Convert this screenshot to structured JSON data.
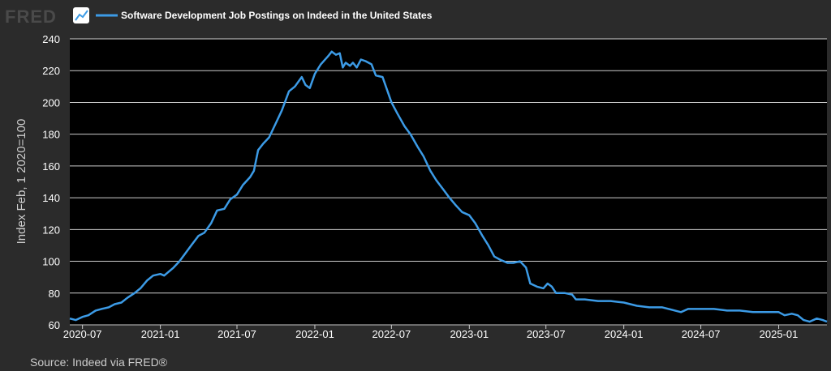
{
  "branding": {
    "logo_text": "FRED",
    "logo_icon": "line-graph-icon"
  },
  "colors": {
    "background": "#2b2b2b",
    "plot_area": "#000000",
    "grid": "#cccccc",
    "series": "#3c9be6",
    "text": "#ffffff",
    "muted_text": "#cccccc"
  },
  "source": "Source: Indeed via FRED®",
  "chart_data": {
    "type": "line",
    "title": "",
    "xlabel": "",
    "ylabel": "Index Feb, 1 2020=100",
    "ylim": [
      60,
      240
    ],
    "yticks": [
      60,
      80,
      100,
      120,
      140,
      160,
      180,
      200,
      220,
      240
    ],
    "xlim": [
      "2020-06-01",
      "2025-04-25"
    ],
    "xticks": [
      "2020-07",
      "2021-01",
      "2021-07",
      "2022-01",
      "2022-07",
      "2023-01",
      "2023-07",
      "2024-01",
      "2024-07",
      "2025-01"
    ],
    "grid": true,
    "legend": "top-left",
    "series": [
      {
        "name": "Software Development Job Postings on Indeed in the United States",
        "color": "#3c9be6",
        "points": [
          [
            "2020-06-01",
            64
          ],
          [
            "2020-06-15",
            63
          ],
          [
            "2020-07-01",
            65
          ],
          [
            "2020-07-15",
            66
          ],
          [
            "2020-08-01",
            69
          ],
          [
            "2020-08-15",
            70
          ],
          [
            "2020-09-01",
            71
          ],
          [
            "2020-09-15",
            73
          ],
          [
            "2020-10-01",
            74
          ],
          [
            "2020-10-15",
            77
          ],
          [
            "2020-11-01",
            80
          ],
          [
            "2020-11-15",
            83
          ],
          [
            "2020-12-01",
            88
          ],
          [
            "2020-12-15",
            91
          ],
          [
            "2021-01-01",
            92
          ],
          [
            "2021-01-10",
            91
          ],
          [
            "2021-02-01",
            96
          ],
          [
            "2021-02-15",
            100
          ],
          [
            "2021-03-01",
            105
          ],
          [
            "2021-03-15",
            110
          ],
          [
            "2021-04-01",
            116
          ],
          [
            "2021-04-15",
            118
          ],
          [
            "2021-05-01",
            124
          ],
          [
            "2021-05-15",
            132
          ],
          [
            "2021-06-01",
            133
          ],
          [
            "2021-06-15",
            139
          ],
          [
            "2021-07-01",
            142
          ],
          [
            "2021-07-15",
            148
          ],
          [
            "2021-08-01",
            153
          ],
          [
            "2021-08-10",
            157
          ],
          [
            "2021-08-20",
            170
          ],
          [
            "2021-09-01",
            174
          ],
          [
            "2021-09-15",
            178
          ],
          [
            "2021-10-01",
            187
          ],
          [
            "2021-10-15",
            195
          ],
          [
            "2021-11-01",
            207
          ],
          [
            "2021-11-15",
            210
          ],
          [
            "2021-12-01",
            216
          ],
          [
            "2021-12-10",
            211
          ],
          [
            "2021-12-20",
            209
          ],
          [
            "2022-01-01",
            218
          ],
          [
            "2022-01-15",
            224
          ],
          [
            "2022-02-01",
            229
          ],
          [
            "2022-02-10",
            232
          ],
          [
            "2022-02-20",
            230
          ],
          [
            "2022-03-01",
            231
          ],
          [
            "2022-03-08",
            222
          ],
          [
            "2022-03-15",
            225
          ],
          [
            "2022-03-25",
            223
          ],
          [
            "2022-04-01",
            225
          ],
          [
            "2022-04-10",
            222
          ],
          [
            "2022-04-20",
            227
          ],
          [
            "2022-05-01",
            226
          ],
          [
            "2022-05-15",
            224
          ],
          [
            "2022-05-25",
            217
          ],
          [
            "2022-06-10",
            216
          ],
          [
            "2022-07-01",
            200
          ],
          [
            "2022-07-15",
            193
          ],
          [
            "2022-08-01",
            185
          ],
          [
            "2022-08-15",
            180
          ],
          [
            "2022-09-01",
            172
          ],
          [
            "2022-09-15",
            166
          ],
          [
            "2022-10-01",
            157
          ],
          [
            "2022-10-15",
            151
          ],
          [
            "2022-11-01",
            145
          ],
          [
            "2022-11-15",
            140
          ],
          [
            "2022-12-01",
            135
          ],
          [
            "2022-12-15",
            131
          ],
          [
            "2023-01-01",
            129
          ],
          [
            "2023-01-15",
            124
          ],
          [
            "2023-02-01",
            116
          ],
          [
            "2023-02-15",
            110
          ],
          [
            "2023-03-01",
            103
          ],
          [
            "2023-03-15",
            101
          ],
          [
            "2023-04-01",
            99
          ],
          [
            "2023-04-15",
            99
          ],
          [
            "2023-05-01",
            100
          ],
          [
            "2023-05-15",
            96
          ],
          [
            "2023-05-25",
            86
          ],
          [
            "2023-06-10",
            84
          ],
          [
            "2023-06-25",
            83
          ],
          [
            "2023-07-05",
            86
          ],
          [
            "2023-07-15",
            84
          ],
          [
            "2023-07-25",
            80
          ],
          [
            "2023-08-15",
            80
          ],
          [
            "2023-09-01",
            79
          ],
          [
            "2023-09-10",
            76
          ],
          [
            "2023-10-01",
            76
          ],
          [
            "2023-11-01",
            75
          ],
          [
            "2023-12-01",
            75
          ],
          [
            "2024-01-01",
            74
          ],
          [
            "2024-02-01",
            72
          ],
          [
            "2024-03-01",
            71
          ],
          [
            "2024-04-01",
            71
          ],
          [
            "2024-05-01",
            69
          ],
          [
            "2024-05-15",
            68
          ],
          [
            "2024-06-01",
            70
          ],
          [
            "2024-07-01",
            70
          ],
          [
            "2024-08-01",
            70
          ],
          [
            "2024-09-01",
            69
          ],
          [
            "2024-10-01",
            69
          ],
          [
            "2024-11-01",
            68
          ],
          [
            "2024-12-01",
            68
          ],
          [
            "2025-01-01",
            68
          ],
          [
            "2025-01-15",
            66
          ],
          [
            "2025-02-01",
            67
          ],
          [
            "2025-02-15",
            66
          ],
          [
            "2025-03-01",
            63
          ],
          [
            "2025-03-15",
            62
          ],
          [
            "2025-04-01",
            64
          ],
          [
            "2025-04-15",
            63
          ],
          [
            "2025-04-25",
            62
          ]
        ]
      }
    ]
  }
}
